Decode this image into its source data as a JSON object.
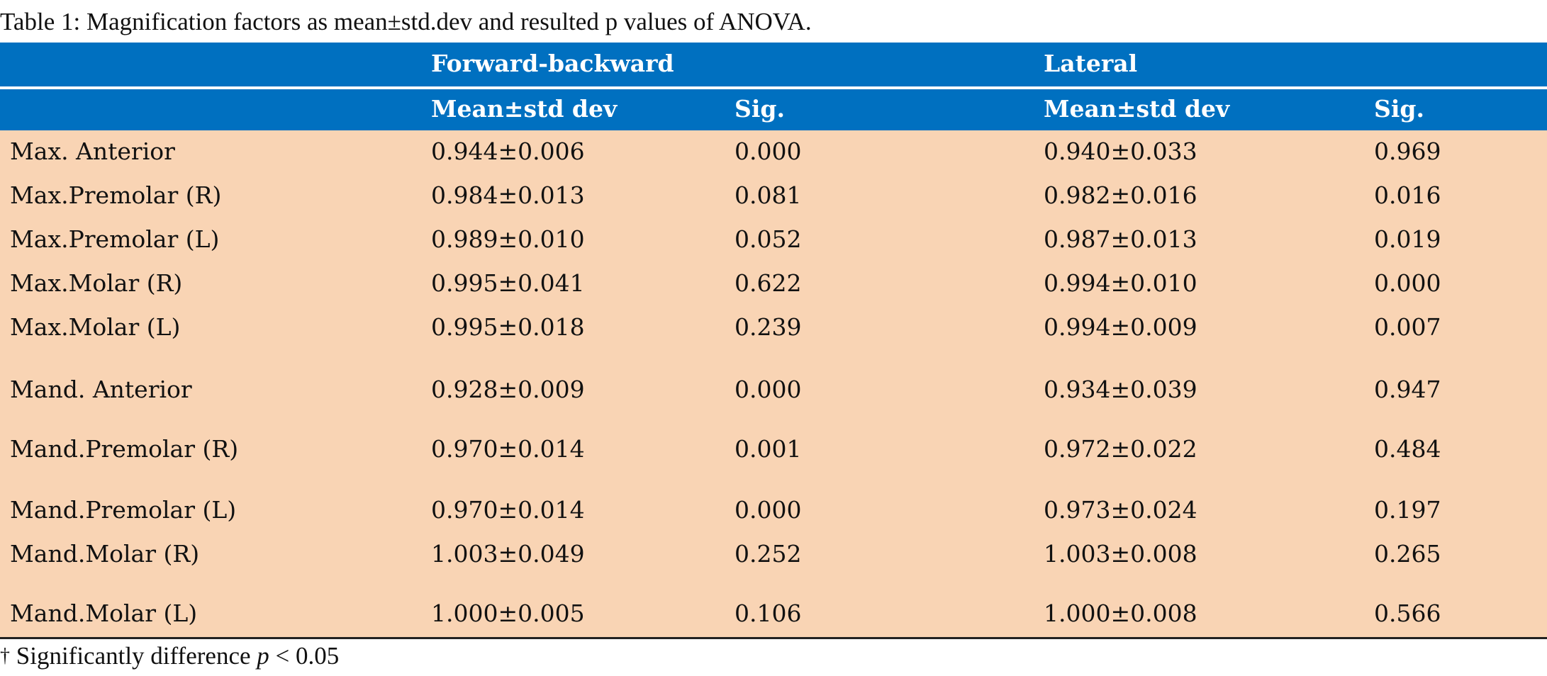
{
  "caption": "Table 1: Magnification factors as mean±std.dev and resulted p values of ANOVA.",
  "header": {
    "group1": "Forward-backward",
    "group2": "Lateral",
    "sub": [
      "Mean±std dev",
      "Sig.",
      "Mean±std dev",
      "Sig."
    ]
  },
  "rows": [
    {
      "label": "Max. Anterior",
      "fb_mean": "0.944±0.006",
      "fb_sig": "0.000",
      "lat_mean": "0.940±0.033",
      "lat_sig": "0.969"
    },
    {
      "label": "Max.Premolar (R)",
      "fb_mean": "0.984±0.013",
      "fb_sig": "0.081",
      "lat_mean": "0.982±0.016",
      "lat_sig": "0.016"
    },
    {
      "label": "Max.Premolar (L)",
      "fb_mean": "0.989±0.010",
      "fb_sig": "0.052",
      "lat_mean": "0.987±0.013",
      "lat_sig": "0.019"
    },
    {
      "label": "Max.Molar (R)",
      "fb_mean": "0.995±0.041",
      "fb_sig": "0.622",
      "lat_mean": "0.994±0.010",
      "lat_sig": "0.000"
    },
    {
      "label": "Max.Molar (L)",
      "fb_mean": "0.995±0.018",
      "fb_sig": "0.239",
      "lat_mean": "0.994±0.009",
      "lat_sig": "0.007"
    },
    {
      "label": "Mand. Anterior",
      "fb_mean": "0.928±0.009",
      "fb_sig": "0.000",
      "lat_mean": "0.934±0.039",
      "lat_sig": "0.947"
    },
    {
      "label": "Mand.Premolar (R)",
      "fb_mean": "0.970±0.014",
      "fb_sig": "0.001",
      "lat_mean": "0.972±0.022",
      "lat_sig": "0.484"
    },
    {
      "label": "Mand.Premolar (L)",
      "fb_mean": "0.970±0.014",
      "fb_sig": "0.000",
      "lat_mean": "0.973±0.024",
      "lat_sig": "0.197"
    },
    {
      "label": "Mand.Molar (R)",
      "fb_mean": "1.003±0.049",
      "fb_sig": "0.252",
      "lat_mean": "1.003±0.008",
      "lat_sig": "0.265"
    },
    {
      "label": "Mand.Molar (L)",
      "fb_mean": "1.000±0.005",
      "fb_sig": "0.106",
      "lat_mean": "1.000±0.008",
      "lat_sig": "0.566"
    }
  ],
  "footnote": {
    "dagger": "†",
    "text": " Significantly difference ",
    "p": "p",
    "rest": " < 0.05"
  },
  "colors": {
    "header_bg": "#0070c0",
    "body_bg": "#f9d4b4"
  }
}
